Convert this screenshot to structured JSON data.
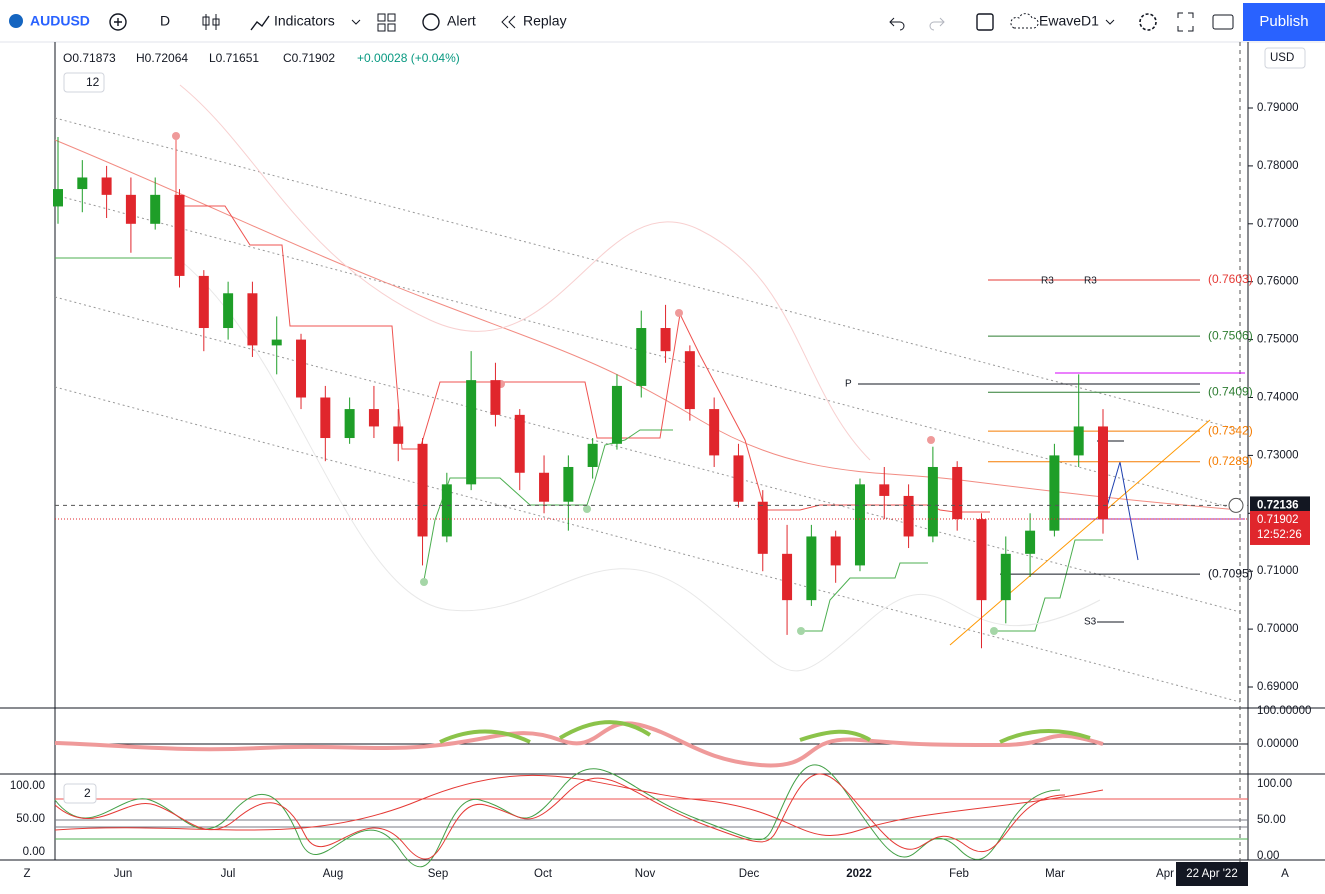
{
  "toolbar": {
    "symbol": "AUDUSD",
    "interval": "D",
    "indicators": "Indicators",
    "alert": "Alert",
    "replay": "Replay",
    "layout": "EwaveD1",
    "publish": "Publish"
  },
  "legend": {
    "open": "O0.71873",
    "high": "H0.72064",
    "low": "L0.71651",
    "close": "C0.71902",
    "change": "+0.00028 (+0.04%)",
    "collapsed": "12"
  },
  "chart": {
    "currency": "USD",
    "price_ticks": [
      {
        "value": 0.79,
        "label": "0.79000"
      },
      {
        "value": 0.78,
        "label": "0.78000"
      },
      {
        "value": 0.77,
        "label": "0.77000"
      },
      {
        "value": 0.76,
        "label": "0.76000"
      },
      {
        "value": 0.75,
        "label": "0.75000"
      },
      {
        "value": 0.74,
        "label": "0.74000"
      },
      {
        "value": 0.73,
        "label": "0.73000"
      },
      {
        "value": 0.72,
        "label": "0.72000"
      },
      {
        "value": 0.71,
        "label": "0.71000"
      },
      {
        "value": 0.7,
        "label": "0.70000"
      },
      {
        "value": 0.69,
        "label": "0.69000"
      }
    ],
    "levels": [
      {
        "value": 0.7603,
        "label": "(0.7603)",
        "color": "#e53935"
      },
      {
        "value": 0.7506,
        "label": "(0.7506)",
        "color": "#2e7d32"
      },
      {
        "value": 0.7409,
        "label": "(0.7409)",
        "color": "#2e7d32"
      },
      {
        "value": 0.7342,
        "label": "(0.7342)",
        "color": "#f57c00"
      },
      {
        "value": 0.7289,
        "label": "(0.7289)",
        "color": "#f57c00"
      },
      {
        "value": 0.7095,
        "label": "(0.7095)",
        "color": "#131722"
      }
    ],
    "pivot_labels": [
      "R3",
      "R3",
      "P",
      "S3"
    ],
    "crosshair_price": {
      "value": 0.72136,
      "label": "0.72136"
    },
    "last_price": {
      "value": 0.71902,
      "label": "0.71902"
    },
    "countdown": "12:52:26",
    "time_labels": [
      "Jun",
      "Jul",
      "Aug",
      "Sep",
      "Oct",
      "Nov",
      "Dec",
      "2022",
      "Feb",
      "Mar",
      "Apr"
    ],
    "crosshair_date": "22 Apr '22",
    "candles": [
      [
        0.773,
        0.785,
        0.77,
        0.776
      ],
      [
        0.776,
        0.781,
        0.772,
        0.778
      ],
      [
        0.778,
        0.78,
        0.771,
        0.775
      ],
      [
        0.775,
        0.778,
        0.765,
        0.77
      ],
      [
        0.77,
        0.778,
        0.769,
        0.775
      ],
      [
        0.775,
        0.776,
        0.759,
        0.761
      ],
      [
        0.761,
        0.762,
        0.748,
        0.752
      ],
      [
        0.752,
        0.76,
        0.75,
        0.758
      ],
      [
        0.758,
        0.76,
        0.747,
        0.749
      ],
      [
        0.749,
        0.754,
        0.744,
        0.75
      ],
      [
        0.75,
        0.751,
        0.738,
        0.74
      ],
      [
        0.74,
        0.742,
        0.729,
        0.733
      ],
      [
        0.733,
        0.74,
        0.732,
        0.738
      ],
      [
        0.738,
        0.742,
        0.733,
        0.735
      ],
      [
        0.735,
        0.738,
        0.729,
        0.732
      ],
      [
        0.732,
        0.733,
        0.711,
        0.716
      ],
      [
        0.716,
        0.727,
        0.715,
        0.725
      ],
      [
        0.725,
        0.748,
        0.724,
        0.743
      ],
      [
        0.743,
        0.746,
        0.735,
        0.737
      ],
      [
        0.737,
        0.738,
        0.724,
        0.727
      ],
      [
        0.727,
        0.73,
        0.72,
        0.722
      ],
      [
        0.722,
        0.73,
        0.717,
        0.728
      ],
      [
        0.728,
        0.733,
        0.726,
        0.732
      ],
      [
        0.732,
        0.744,
        0.731,
        0.742
      ],
      [
        0.742,
        0.755,
        0.74,
        0.752
      ],
      [
        0.752,
        0.756,
        0.746,
        0.748
      ],
      [
        0.748,
        0.749,
        0.736,
        0.738
      ],
      [
        0.738,
        0.74,
        0.728,
        0.73
      ],
      [
        0.73,
        0.732,
        0.721,
        0.722
      ],
      [
        0.722,
        0.724,
        0.71,
        0.713
      ],
      [
        0.713,
        0.718,
        0.699,
        0.705
      ],
      [
        0.705,
        0.718,
        0.704,
        0.716
      ],
      [
        0.716,
        0.717,
        0.708,
        0.711
      ],
      [
        0.711,
        0.726,
        0.71,
        0.725
      ],
      [
        0.725,
        0.728,
        0.719,
        0.723
      ],
      [
        0.723,
        0.725,
        0.714,
        0.716
      ],
      [
        0.716,
        0.7315,
        0.715,
        0.728
      ],
      [
        0.728,
        0.729,
        0.717,
        0.719
      ],
      [
        0.719,
        0.72,
        0.6967,
        0.705
      ],
      [
        0.705,
        0.716,
        0.701,
        0.713
      ],
      [
        0.713,
        0.72,
        0.709,
        0.717
      ],
      [
        0.717,
        0.732,
        0.716,
        0.73
      ],
      [
        0.73,
        0.744,
        0.728,
        0.735
      ],
      [
        0.735,
        0.738,
        0.7165,
        0.719
      ]
    ]
  },
  "osc1": {
    "top_label": "100.00000",
    "zero_label": "0.00000"
  },
  "osc2": {
    "collapsed": "2",
    "left_ticks": [
      "100.00",
      "50.00",
      "0.00"
    ],
    "right_ticks": [
      "100.00",
      "50.00",
      "0.00"
    ]
  },
  "footer": {
    "timezone": "Z",
    "auto": "A"
  }
}
